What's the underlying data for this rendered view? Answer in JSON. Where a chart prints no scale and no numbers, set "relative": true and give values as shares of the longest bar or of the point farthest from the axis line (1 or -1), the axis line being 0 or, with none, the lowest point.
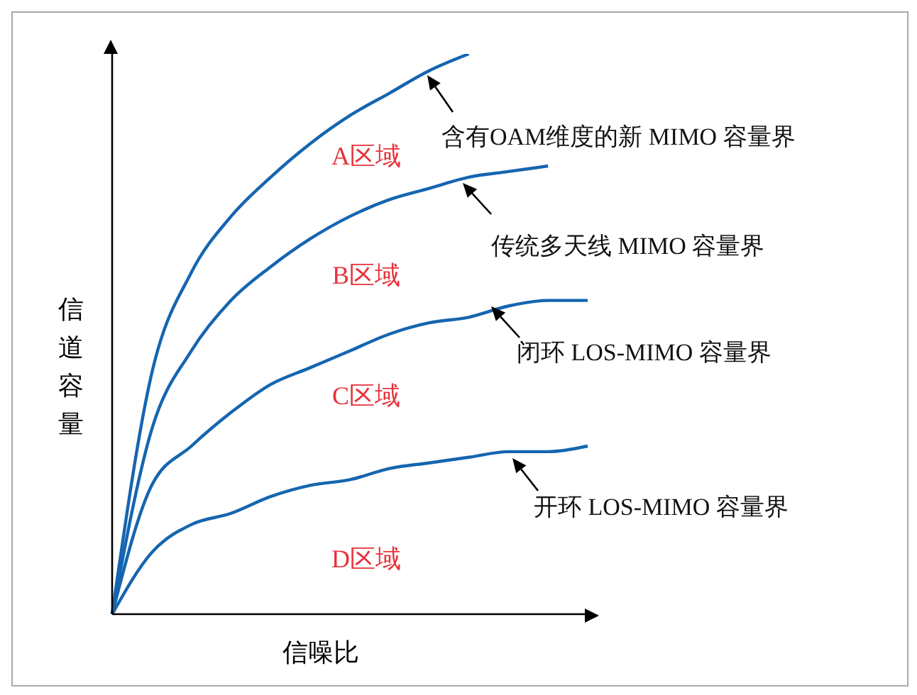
{
  "chart_data": {
    "type": "line",
    "relative": true,
    "xlabel": "信噪比",
    "ylabel": "信道容量",
    "categories": [
      null,
      null,
      null,
      null,
      null,
      null,
      null,
      null,
      null,
      null,
      null,
      null,
      null
    ],
    "series": [
      {
        "color": "#1565b0",
        "values": [
          0,
          0.43,
          0.61,
          0.71,
          0.78,
          0.84,
          0.89,
          0.93,
          0.97,
          1,
          null,
          null,
          null
        ]
      },
      {
        "color": "#1565b0",
        "values": [
          0,
          0.33,
          0.47,
          0.56,
          0.62,
          0.67,
          0.71,
          0.74,
          0.76,
          0.78,
          0.79,
          0.8,
          null
        ]
      },
      {
        "color": "#1565b0",
        "values": [
          0,
          0.23,
          0.3,
          0.36,
          0.41,
          0.44,
          0.47,
          0.5,
          0.52,
          0.53,
          0.55,
          0.56,
          0.56
        ]
      },
      {
        "color": "#1565b0",
        "values": [
          0,
          0.11,
          0.16,
          0.18,
          0.21,
          0.23,
          0.24,
          0.26,
          0.27,
          0.28,
          0.29,
          0.29,
          0.3
        ]
      }
    ],
    "annotations": [
      "含有OAM维度的新 MIMO 容量界",
      "传统多天线 MIMO 容量界",
      "闭环 LOS-MIMO 容量界",
      "开环 LOS-MIMO 容量界",
      "A区域",
      "B区域",
      "C区域",
      "D区域"
    ],
    "legend": false,
    "marker": "none",
    "line_style": "solid",
    "grid": false
  }
}
